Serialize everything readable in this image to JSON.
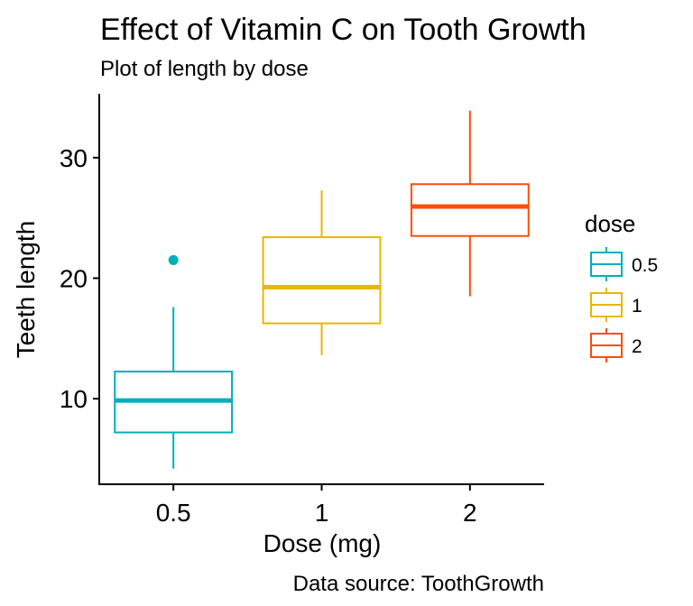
{
  "chart_data": {
    "type": "box",
    "title": "Effect of Vitamin C on Tooth Growth",
    "subtitle": "Plot of length by dose",
    "caption": "Data source: ToothGrowth",
    "xlabel": "Dose (mg)",
    "ylabel": "Teeth length",
    "categories": [
      "0.5",
      "1",
      "2"
    ],
    "yticks": [
      10,
      20,
      30
    ],
    "ylim": [
      2.9,
      35.3
    ],
    "grid": false,
    "legend": {
      "title": "dose",
      "position": "right",
      "entries": [
        "0.5",
        "1",
        "2"
      ]
    },
    "colors": [
      "#00AFBB",
      "#E7B800",
      "#FC4E07"
    ],
    "boxes": [
      {
        "category": "0.5",
        "min": 4.2,
        "q1": 7.2,
        "median": 9.85,
        "q3": 12.25,
        "max": 17.6,
        "outliers": [
          21.5
        ]
      },
      {
        "category": "1",
        "min": 13.6,
        "q1": 16.25,
        "median": 19.25,
        "q3": 23.4,
        "max": 27.3,
        "outliers": []
      },
      {
        "category": "2",
        "min": 18.5,
        "q1": 23.5,
        "median": 25.95,
        "q3": 27.8,
        "max": 33.9,
        "outliers": []
      }
    ]
  }
}
